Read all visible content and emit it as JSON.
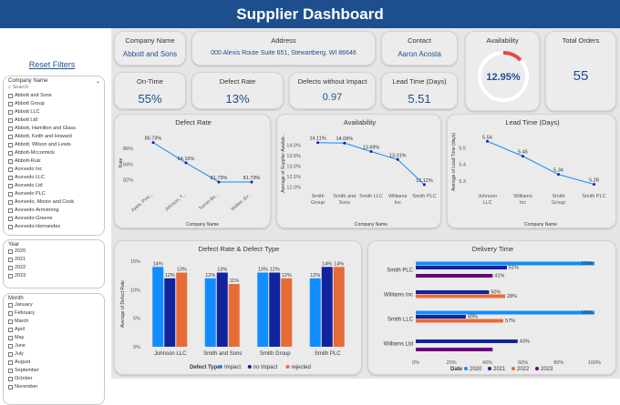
{
  "header": {
    "title": "Supplier Dashboard"
  },
  "sidebar": {
    "reset_label": "Reset Filters",
    "company": {
      "title": "Company Name",
      "search": "Search",
      "items": [
        "Abbott and Sons",
        "Abbott Group",
        "Abbott LLC",
        "Abbott Ltd",
        "Abbott, Hamilton and Glass",
        "Abbott, Keith and Howard",
        "Abbott, Wilson and Lewis",
        "Abbott-Mccormick",
        "Abbott-Ruiz",
        "Acevedo Inc",
        "Acevedo LLC",
        "Acevedo Ltd",
        "Acevedo PLC",
        "Acevedo, Moore and Cook",
        "Acevedo-Armstrong",
        "Acevedo-Greene",
        "Acevedo-Hernandez"
      ]
    },
    "year": {
      "title": "Year",
      "items": [
        "2020",
        "2021",
        "2022",
        "2023"
      ]
    },
    "month": {
      "title": "Month",
      "items": [
        "January",
        "February",
        "March",
        "April",
        "May",
        "June",
        "July",
        "August",
        "September",
        "October",
        "November"
      ]
    }
  },
  "cards": {
    "company": {
      "label": "Company Name",
      "value": "Abbott and Sons"
    },
    "address": {
      "label": "Address",
      "value": "000 Alexis Route Suite 651, Stewartberg, WI 86646"
    },
    "contact": {
      "label": "Contact",
      "value": "Aaron Acosta"
    },
    "availability": {
      "label": "Availability",
      "value": "12.95%",
      "fraction": 0.1295
    },
    "total_orders": {
      "label": "Total Orders",
      "value": "55"
    },
    "ontime": {
      "label": "On-Time",
      "value": "55%"
    },
    "defect_rate": {
      "label": "Defect Rate",
      "value": "13%"
    },
    "defects_no_impact": {
      "label": "Defects without Impact",
      "value": "0.97"
    },
    "lead_time": {
      "label": "Lead Time (Days)",
      "value": "5.51"
    }
  },
  "colors": {
    "blue": "#118dff",
    "navy": "#12239e",
    "orange": "#e66c37",
    "magenta": "#6b007b",
    "line": "#118dff",
    "header": "#1d4f8e",
    "gauge": "#e04a4a"
  },
  "chart_data": [
    {
      "type": "line",
      "title": "Defect Rate",
      "xlabel": "Company Name",
      "ylabel": "Rate",
      "categories": [
        "Ayala, Pine...",
        "Johnson, T...",
        "Turner-Bo...",
        "Walker, Ev..."
      ],
      "values": [
        86.73,
        84.16,
        81.73,
        81.73
      ],
      "labels": [
        "86.73%",
        "84.16%",
        "81.73%",
        "81.73%"
      ],
      "yticks": [
        "86%",
        "84%",
        "82%"
      ],
      "ylim": [
        80.8,
        87.5
      ]
    },
    {
      "type": "line",
      "title": "Availability",
      "xlabel": "Company Name",
      "ylabel": "Average of Supplier Availab...",
      "categories": [
        "Smith Group",
        "Smith and Sons",
        "Smith LLC",
        "Williams Inc",
        "Smith PLC"
      ],
      "values": [
        14.11,
        14.09,
        13.69,
        13.31,
        12.12
      ],
      "labels": [
        "14.11%",
        "14.09%",
        "13.69%",
        "13.31%",
        "12.12%"
      ],
      "yticks": [
        "14.0%",
        "13.5%",
        "13.0%",
        "12.5%",
        "12.0%"
      ],
      "ylim": [
        11.9,
        14.4
      ]
    },
    {
      "type": "line",
      "title": "Lead Time (Days)",
      "xlabel": "Company Name",
      "ylabel": "Average of Lead Time (days)",
      "categories": [
        "Johnson LLC",
        "Williams Inc",
        "Smith Group",
        "Smith PLC"
      ],
      "values": [
        5.54,
        5.45,
        5.34,
        5.28
      ],
      "labels": [
        "5.54",
        "5.45",
        "5.34",
        "5.28"
      ],
      "yticks": [
        "5.5",
        "5.4",
        "5.3"
      ],
      "ylim": [
        5.25,
        5.58
      ]
    },
    {
      "type": "bar",
      "title": "Defect Rate & Defect Type",
      "xlabel": "Defect Type",
      "ylabel": "Average of Defect Rate",
      "categories": [
        "Johnson LLC",
        "Smith and Sons",
        "Smith Group",
        "Smith PLC"
      ],
      "series": [
        {
          "name": "Impact",
          "values": [
            14,
            12,
            13,
            12
          ]
        },
        {
          "name": "no Impact",
          "values": [
            12,
            13,
            13,
            14
          ]
        },
        {
          "name": "rejected",
          "values": [
            13,
            11,
            12,
            14
          ]
        }
      ],
      "labels": [
        [
          "14%",
          "12%",
          "13%"
        ],
        [
          "12%",
          "13%",
          "11%"
        ],
        [
          "13%",
          "12%",
          "12%"
        ],
        [
          "12%",
          "14%",
          "14%"
        ]
      ],
      "yticks": [
        "15%",
        "10%",
        "5%",
        "0%"
      ],
      "ylim": [
        0,
        15
      ],
      "legend": "bottom"
    },
    {
      "type": "bar",
      "title": "Delivery Time",
      "xlabel": "",
      "ylabel": "",
      "categories": [
        "Smith PLC",
        "Williams Inc",
        "Smith LLC",
        "Williams Ltd"
      ],
      "series": [
        {
          "name": "2020",
          "values": [
            100,
            0,
            100,
            0
          ]
        },
        {
          "name": "2021",
          "values": [
            51,
            41,
            28,
            57
          ]
        },
        {
          "name": "2022",
          "values": [
            0,
            50,
            49,
            0
          ]
        },
        {
          "name": "2023",
          "values": [
            43,
            0,
            0,
            43
          ]
        }
      ],
      "labels": [
        "100%",
        "51%",
        "41%",
        "50%",
        "28%",
        "100%",
        "49%",
        "57%",
        "43%"
      ],
      "xticks": [
        "0%",
        "20%",
        "40%",
        "60%",
        "80%",
        "100%"
      ],
      "xlim": [
        0,
        100
      ],
      "legend_title": "Date",
      "legend": "bottom"
    }
  ]
}
